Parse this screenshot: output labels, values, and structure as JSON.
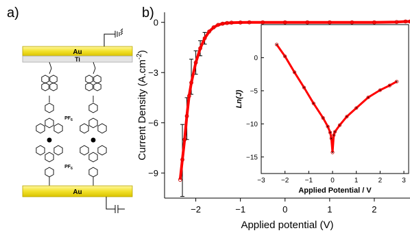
{
  "panel_a": {
    "label": "a)",
    "top_electrode": "Au",
    "adhesion_layer": "Ti",
    "bottom_electrode": "Au",
    "counter_ion_1": "PF",
    "counter_ion_1_sub": "6",
    "counter_ion_2": "PF",
    "counter_ion_2_sub": "6"
  },
  "panel_b": {
    "label": "b)"
  },
  "chart_data": [
    {
      "type": "line",
      "xlabel": "Applied potential (V)",
      "ylabel": "Current Density (A.cm",
      "ylabel_sup": "-2",
      "ylabel_end": ")",
      "xlim": [
        -2.7,
        2.8
      ],
      "ylim": [
        -10.5,
        0.6
      ],
      "xticks": [
        -2,
        -1,
        0,
        1,
        2
      ],
      "yticks": [
        0,
        -3,
        -6,
        -9
      ],
      "colors": {
        "line": "#ff0000",
        "markers": "#cc0000",
        "errorbars": "#000000"
      },
      "series": [
        {
          "x": [
            -2.35,
            -2.3,
            -2.25,
            -2.2,
            -2.15,
            -2.1,
            -2.0,
            -1.9,
            -1.8,
            -1.7,
            -1.6,
            -1.5,
            -1.4,
            -1.3,
            -1.2,
            -1.0,
            -0.8,
            -0.5,
            0,
            0.5,
            1.0,
            1.5,
            2.0,
            2.5,
            2.7,
            2.8
          ],
          "y": [
            -9.4,
            -8.2,
            -7.0,
            -5.6,
            -4.4,
            -3.6,
            -2.4,
            -1.55,
            -0.95,
            -0.55,
            -0.3,
            -0.15,
            -0.08,
            -0.04,
            -0.02,
            -0.01,
            0,
            0,
            0,
            0,
            0,
            0,
            0,
            0.02,
            0.05,
            0.05
          ]
        }
      ],
      "error_bars": [
        {
          "x": -2.3,
          "low": -10.4,
          "high": -6.1
        },
        {
          "x": -2.2,
          "low": -7.0,
          "high": -4.5
        },
        {
          "x": -2.1,
          "low": -4.3,
          "high": -2.2
        },
        {
          "x": -2.0,
          "low": -3.1,
          "high": -1.7
        },
        {
          "x": -1.9,
          "low": -2.0,
          "high": -1.1
        },
        {
          "x": -1.8,
          "low": -1.3,
          "high": -0.6
        }
      ]
    },
    {
      "type": "line",
      "xlabel": "Applied Potential / V",
      "ylabel": "Ln(J)",
      "xlim": [
        -3,
        3.2
      ],
      "ylim": [
        -17.5,
        5
      ],
      "xticks": [
        -3,
        -2,
        -1,
        0,
        1,
        2,
        3
      ],
      "yticks": [
        0,
        -5,
        -10,
        -15
      ],
      "colors": {
        "line": "#ff0000",
        "markers": "#cc0000",
        "dots": "#000000"
      },
      "series": [
        {
          "x": [
            -2.35,
            -2.0,
            -1.6,
            -1.2,
            -0.8,
            -0.4,
            -0.2,
            -0.1,
            -0.05,
            0,
            0.05,
            0.1,
            0.3,
            0.6,
            1.0,
            1.5,
            2.0,
            2.4,
            2.7
          ],
          "y": [
            2.0,
            0.2,
            -2.2,
            -4.5,
            -6.9,
            -9.1,
            -10.4,
            -11.3,
            -12.2,
            -14.3,
            -11.7,
            -11.2,
            -10.2,
            -8.9,
            -7.6,
            -6.0,
            -4.9,
            -4.2,
            -3.6
          ]
        }
      ]
    }
  ]
}
